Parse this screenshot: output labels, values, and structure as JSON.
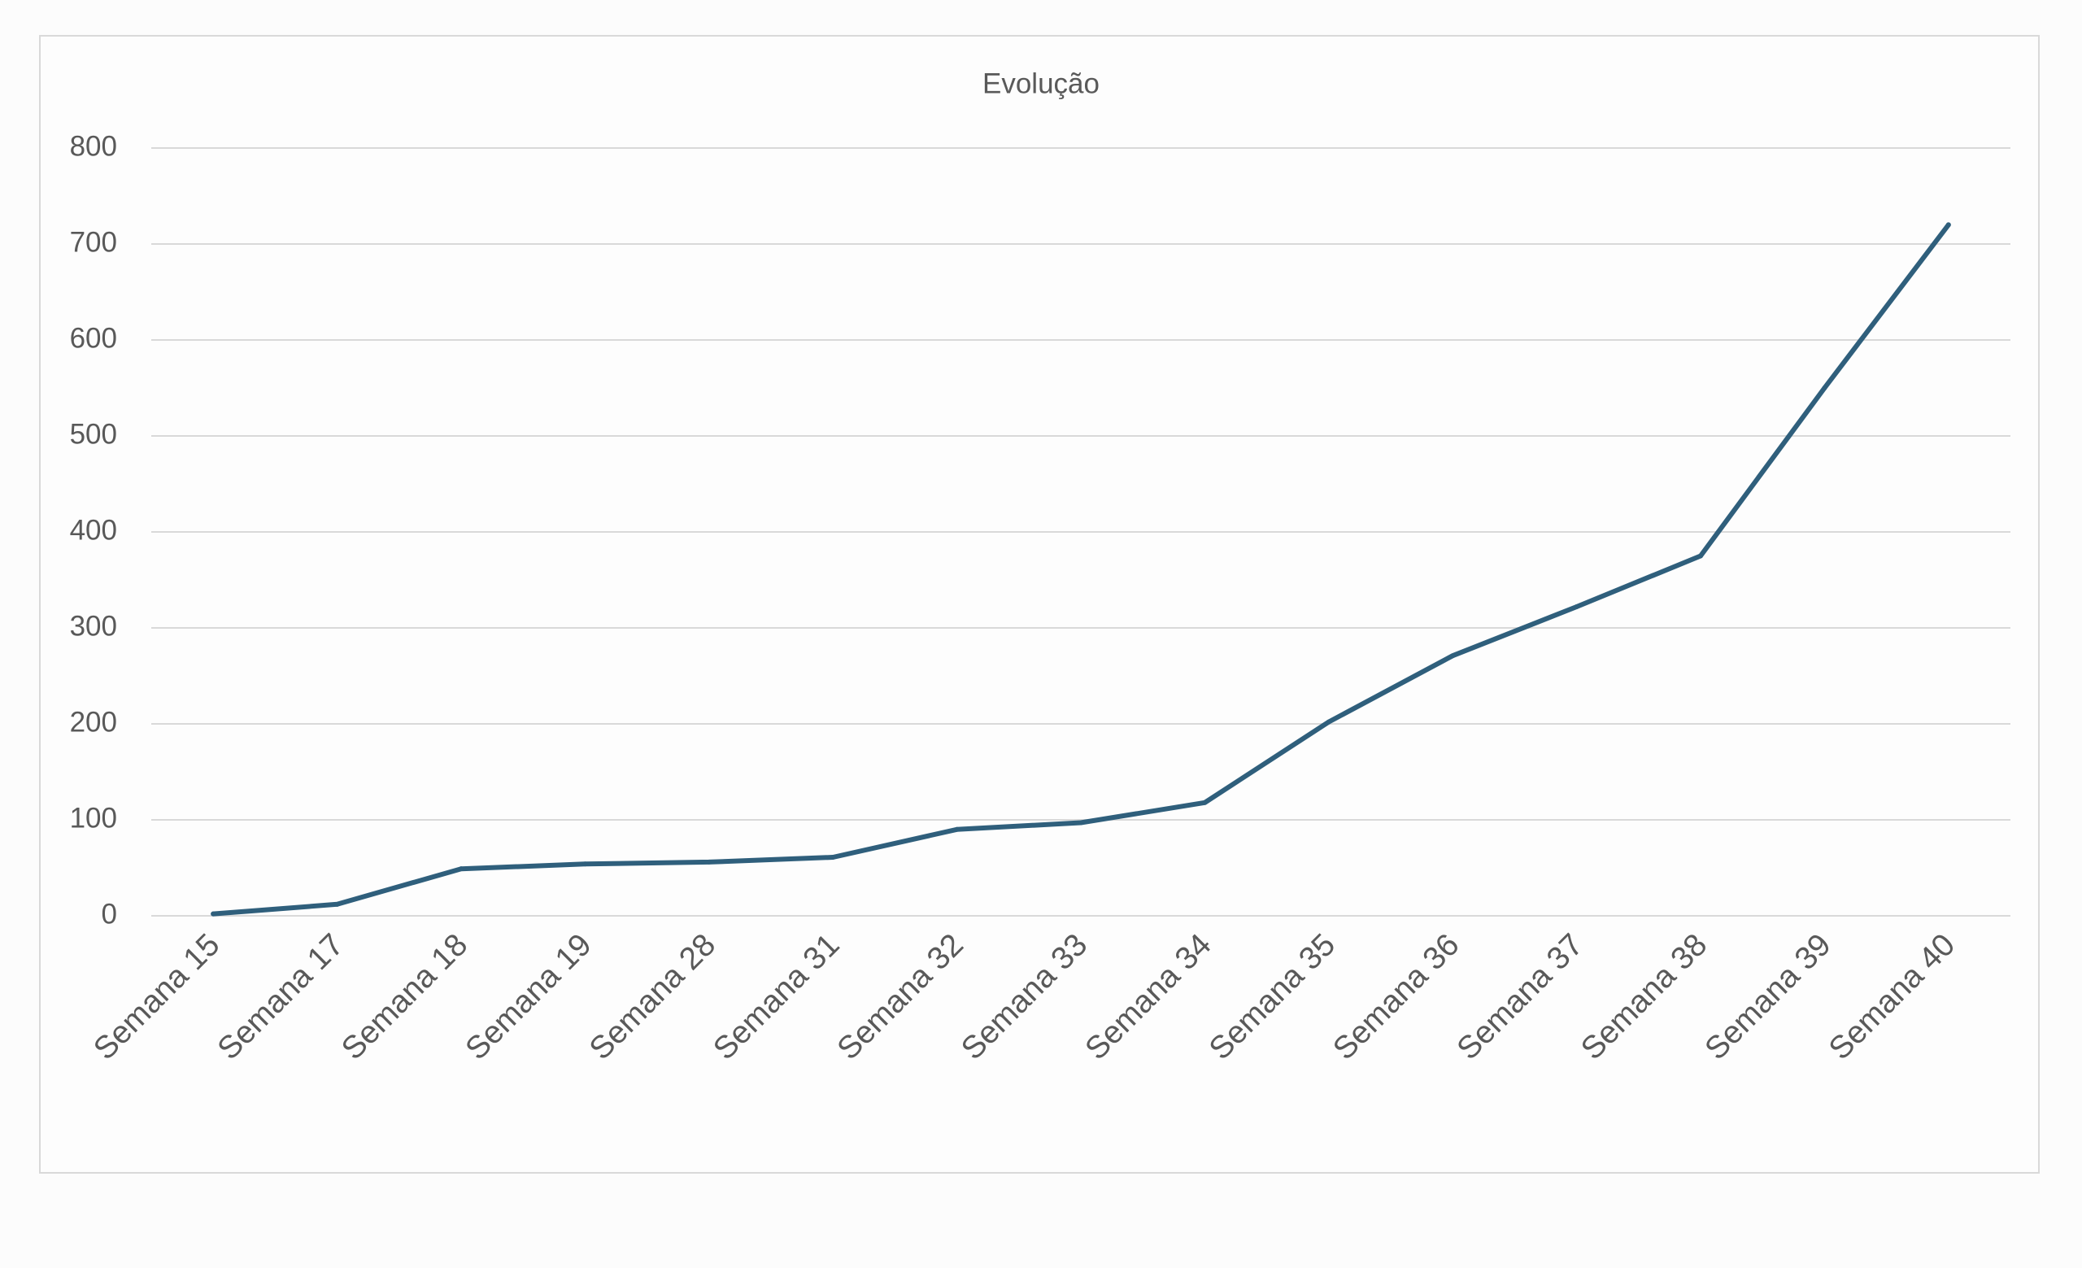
{
  "chart_data": {
    "type": "line",
    "title": "Evolução",
    "xlabel": "",
    "ylabel": "",
    "categories": [
      "Semana 15",
      "Semana 17",
      "Semana 18",
      "Semana 19",
      "Semana 28",
      "Semana 31",
      "Semana 32",
      "Semana 33",
      "Semana 34",
      "Semana 35",
      "Semana 36",
      "Semana 37",
      "Semana 38",
      "Semana 39",
      "Semana 40"
    ],
    "series": [
      {
        "values": [
          2,
          12,
          49,
          54,
          56,
          61,
          90,
          97,
          118,
          202,
          271,
          322,
          375,
          550,
          720
        ],
        "color": "#2f5f7c"
      }
    ],
    "ylim": [
      0,
      800
    ],
    "yticks": [
      0,
      100,
      200,
      300,
      400,
      500,
      600,
      700,
      800
    ],
    "grid": true,
    "legend": "none"
  }
}
